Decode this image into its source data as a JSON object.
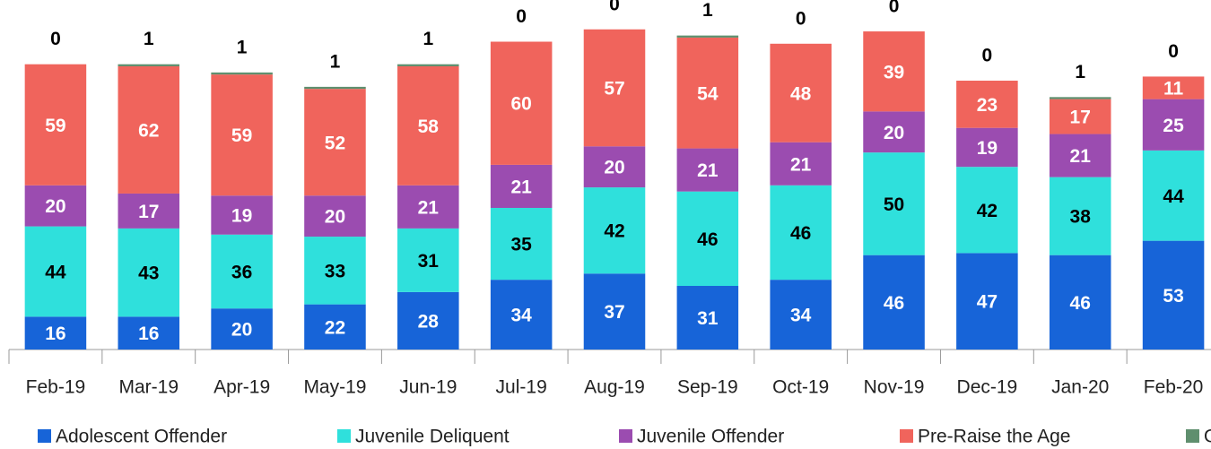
{
  "chart_data": {
    "type": "stacked-bar",
    "categories": [
      "Feb-19",
      "Mar-19",
      "Apr-19",
      "May-19",
      "Jun-19",
      "Jul-19",
      "Aug-19",
      "Sep-19",
      "Oct-19",
      "Nov-19",
      "Dec-19",
      "Jan-20",
      "Feb-20"
    ],
    "series": [
      {
        "name": "Adolescent Offender",
        "color": "#1764d8",
        "values": [
          16,
          16,
          20,
          22,
          28,
          34,
          37,
          31,
          34,
          46,
          47,
          46,
          53
        ]
      },
      {
        "name": "Juvenile Deliquent",
        "color": "#2fe0dc",
        "values": [
          44,
          43,
          36,
          33,
          31,
          35,
          42,
          46,
          46,
          50,
          42,
          38,
          44
        ]
      },
      {
        "name": "Juvenile Offender",
        "color": "#9b4cb0",
        "values": [
          20,
          17,
          19,
          20,
          21,
          21,
          20,
          21,
          21,
          20,
          19,
          21,
          25
        ]
      },
      {
        "name": "Pre-Raise the Age",
        "color": "#f0645c",
        "values": [
          59,
          62,
          59,
          52,
          58,
          60,
          57,
          54,
          48,
          39,
          23,
          17,
          11
        ]
      },
      {
        "name": "Other",
        "color": "#5f8f6e",
        "values": [
          0,
          1,
          1,
          1,
          1,
          0,
          0,
          1,
          0,
          0,
          0,
          1,
          0
        ]
      }
    ]
  }
}
